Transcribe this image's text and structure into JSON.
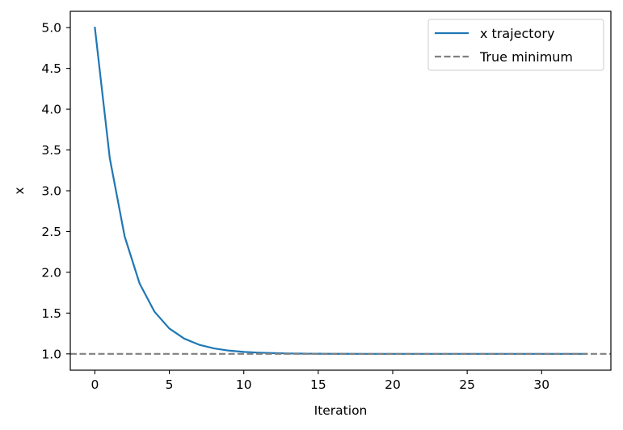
{
  "chart_data": {
    "type": "line",
    "title": "",
    "xlabel": "Iteration",
    "ylabel": "x",
    "xlim": [
      -1.65,
      34.65
    ],
    "ylim": [
      0.8,
      5.2
    ],
    "xticks": [
      0,
      5,
      10,
      15,
      20,
      25,
      30
    ],
    "xtick_labels": [
      "0",
      "5",
      "10",
      "15",
      "20",
      "25",
      "30"
    ],
    "yticks": [
      1.0,
      1.5,
      2.0,
      2.5,
      3.0,
      3.5,
      4.0,
      4.5,
      5.0
    ],
    "ytick_labels": [
      "1.0",
      "1.5",
      "2.0",
      "2.5",
      "3.0",
      "3.5",
      "4.0",
      "4.5",
      "5.0"
    ],
    "grid": false,
    "legend_position": "top-right",
    "series": [
      {
        "name": "x trajectory",
        "style": "solid",
        "color": "#1f77b4",
        "x": [
          0,
          1,
          2,
          3,
          4,
          5,
          6,
          7,
          8,
          9,
          10,
          11,
          12,
          13,
          14,
          15,
          16,
          17,
          18,
          19,
          20,
          21,
          22,
          23,
          24,
          25,
          26,
          27,
          28,
          29,
          30,
          31,
          32,
          33
        ],
        "y": [
          5.0,
          3.4,
          2.44,
          1.864,
          1.518,
          1.311,
          1.187,
          1.112,
          1.067,
          1.04,
          1.024,
          1.015,
          1.009,
          1.005,
          1.003,
          1.002,
          1.001,
          1.001,
          1.0,
          1.0,
          1.0,
          1.0,
          1.0,
          1.0,
          1.0,
          1.0,
          1.0,
          1.0,
          1.0,
          1.0,
          1.0,
          1.0,
          1.0,
          1.0
        ]
      },
      {
        "name": "True minimum",
        "style": "dashed",
        "color": "#808080",
        "hline": 1.0
      }
    ]
  }
}
